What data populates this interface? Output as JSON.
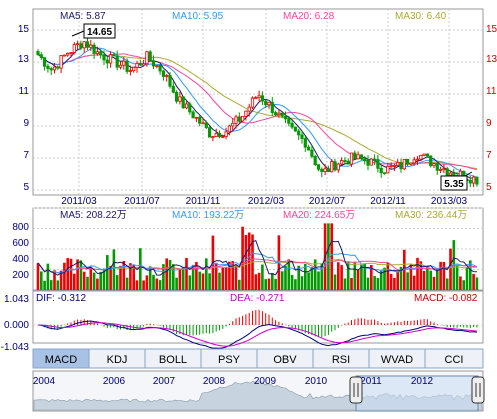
{
  "colors": {
    "up": "#ee0000",
    "down": "#009900",
    "ma5": "#1a1a6e",
    "ma10": "#3399ff",
    "ma20": "#ff4499",
    "ma30": "#aaaa33",
    "grid": "#cccccc",
    "axis_text_left": "#000080",
    "axis_text_right": "#cc0000",
    "tab_active_bg": "#a8c2e6",
    "tab_bg": "#eef2f8"
  },
  "price_panel": {
    "legend": [
      {
        "label": "MA5: 5.87",
        "key": "ma5"
      },
      {
        "label": "MA10: 5.95",
        "key": "ma10"
      },
      {
        "label": "MA20: 6.28",
        "key": "ma20"
      },
      {
        "label": "MA30: 6.40",
        "key": "ma30"
      }
    ],
    "y_ticks": [
      "15",
      "13",
      "11",
      "9",
      "7",
      "5"
    ],
    "high_callout": "14.65",
    "low_callout": "5.35"
  },
  "x_ticks": [
    "2011/03",
    "2011/07",
    "2011/11",
    "2012/03",
    "2012/07",
    "2012/11",
    "2013/03"
  ],
  "volume_panel": {
    "legend": [
      {
        "label": "MA5: 208.22万",
        "key": "ma5"
      },
      {
        "label": "MA10: 193.22万",
        "key": "ma10"
      },
      {
        "label": "MA20: 224.65万",
        "key": "ma20"
      },
      {
        "label": "MA30: 236.44万",
        "key": "ma30"
      }
    ],
    "y_ticks": [
      "800",
      "600",
      "400",
      "200"
    ]
  },
  "macd_panel": {
    "dif_label": "DIF: -0.312",
    "dea_label": "DEA: -0.271",
    "macd_label": "MACD: -0.082",
    "y_ticks": [
      "1.043",
      "0.000",
      "-1.043"
    ]
  },
  "tabs": {
    "active": "MACD",
    "items": [
      "MACD",
      "KDJ",
      "BOLL",
      "PSY",
      "OBV",
      "RSI",
      "WVAD",
      "CCI"
    ]
  },
  "navigator": {
    "years": [
      "2004",
      "2006",
      "2007",
      "2008",
      "2009",
      "2010",
      "2011",
      "2012"
    ]
  },
  "chart_data": {
    "type": "candlestick",
    "x_range": [
      "2011/01",
      "2013/05"
    ],
    "price": {
      "ylim": [
        5,
        15
      ],
      "high": 14.65,
      "low": 5.35,
      "close_trend": [
        {
          "x": "2011/01",
          "y": 13.6
        },
        {
          "x": "2011/02",
          "y": 12.5
        },
        {
          "x": "2011/03",
          "y": 13.6
        },
        {
          "x": "2011/04",
          "y": 14.3
        },
        {
          "x": "2011/05",
          "y": 13.5
        },
        {
          "x": "2011/06",
          "y": 13.0
        },
        {
          "x": "2011/07",
          "y": 12.5
        },
        {
          "x": "2011/08",
          "y": 13.3
        },
        {
          "x": "2011/09",
          "y": 12.4
        },
        {
          "x": "2011/10",
          "y": 10.6
        },
        {
          "x": "2011/11",
          "y": 9.6
        },
        {
          "x": "2011/12",
          "y": 8.5
        },
        {
          "x": "2012/01",
          "y": 8.7
        },
        {
          "x": "2012/02",
          "y": 9.6
        },
        {
          "x": "2012/03",
          "y": 11.0
        },
        {
          "x": "2012/04",
          "y": 10.0
        },
        {
          "x": "2012/05",
          "y": 8.8
        },
        {
          "x": "2012/06",
          "y": 8.0
        },
        {
          "x": "2012/07",
          "y": 6.0
        },
        {
          "x": "2012/08",
          "y": 6.7
        },
        {
          "x": "2012/09",
          "y": 7.0
        },
        {
          "x": "2012/10",
          "y": 6.8
        },
        {
          "x": "2012/11",
          "y": 6.3
        },
        {
          "x": "2012/12",
          "y": 6.5
        },
        {
          "x": "2013/01",
          "y": 7.3
        },
        {
          "x": "2013/02",
          "y": 6.7
        },
        {
          "x": "2013/03",
          "y": 6.2
        },
        {
          "x": "2013/04",
          "y": 5.9
        },
        {
          "x": "2013/05",
          "y": 5.6
        }
      ],
      "ma_last": {
        "MA5": 5.87,
        "MA10": 5.95,
        "MA20": 6.28,
        "MA30": 6.4
      }
    },
    "volume": {
      "unit": "万",
      "ylim": [
        0,
        800
      ],
      "ma_last": {
        "MA5": 208.22,
        "MA10": 193.22,
        "MA20": 224.65,
        "MA30": 236.44
      }
    },
    "macd": {
      "ylim": [
        -1.043,
        1.043
      ],
      "DIF": -0.312,
      "DEA": -0.271,
      "MACD": -0.082
    }
  }
}
